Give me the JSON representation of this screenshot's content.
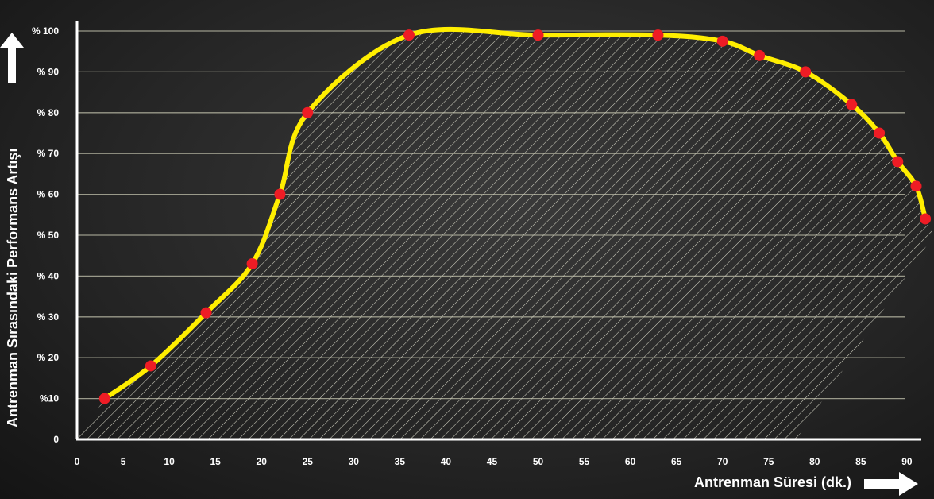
{
  "chart_data": {
    "type": "line",
    "xlabel": "Antrenman Süresi (dk.)",
    "ylabel": "Antrenman Sırasındaki Performans Artışı",
    "xlim": [
      0,
      92
    ],
    "ylim": [
      0,
      100
    ],
    "x_ticks": [
      "0",
      "5",
      "10",
      "15",
      "20",
      "25",
      "30",
      "35",
      "40",
      "45",
      "50",
      "55",
      "60",
      "65",
      "70",
      "75",
      "80",
      "85",
      "90"
    ],
    "y_ticks": [
      "0",
      "%10",
      "% 20",
      "% 30",
      "% 40",
      "% 50",
      "% 60",
      "% 70",
      "% 80",
      "% 90",
      "% 100"
    ],
    "grid": true,
    "fill_pattern": "diagonal-hatch",
    "colors": {
      "line": "#ffee00",
      "points": "#ee1c25",
      "grid": "#9a9a8a",
      "hatch": "#cfcfc0",
      "axis": "#ffffff"
    },
    "series": [
      {
        "x": [
          3,
          8,
          14,
          19,
          22,
          25,
          36,
          50,
          63,
          70,
          74,
          79,
          84,
          87,
          89,
          91,
          92
        ],
        "y": [
          10,
          18,
          31,
          43,
          60,
          80,
          99,
          99,
          99,
          97.5,
          94,
          90,
          82,
          75,
          68,
          62,
          54
        ]
      }
    ]
  }
}
